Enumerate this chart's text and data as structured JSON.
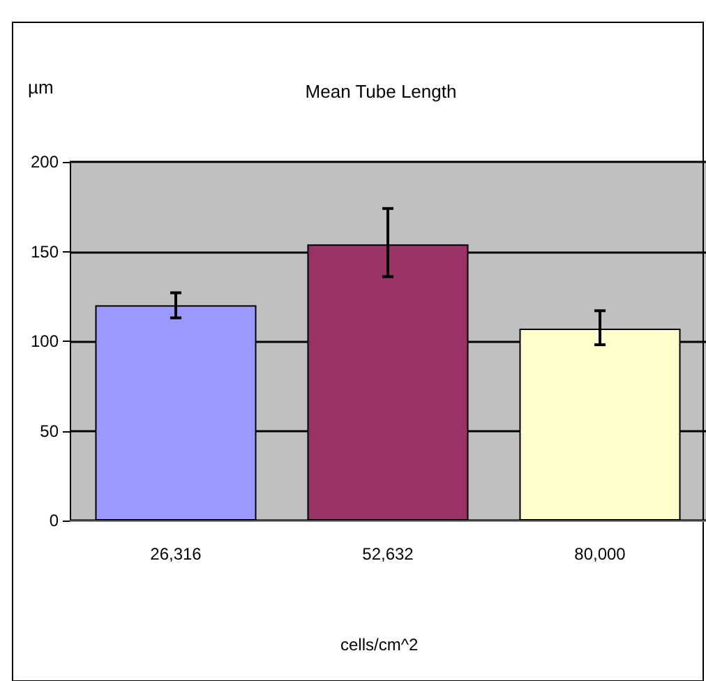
{
  "chart_data": {
    "type": "bar",
    "title": "Mean Tube Length",
    "ylabel": "µm",
    "xlabel": "cells/cm^2",
    "categories": [
      "26,316",
      "52,632",
      "80,000"
    ],
    "values": [
      120,
      154,
      107
    ],
    "colors": [
      "#9999ff",
      "#993366",
      "#ffffcc"
    ],
    "errors": [
      [
        113,
        127
      ],
      [
        136,
        174
      ],
      [
        98,
        117
      ]
    ],
    "ylim": [
      0,
      200
    ],
    "yticks": [
      0,
      50,
      100,
      150,
      200
    ],
    "grid": "y"
  }
}
